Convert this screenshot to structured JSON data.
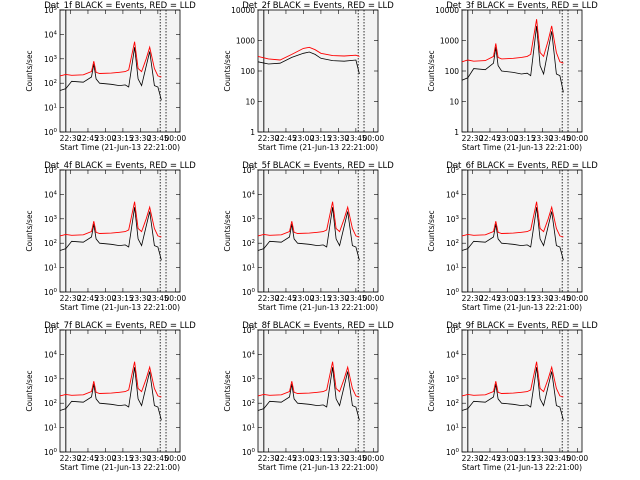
{
  "chart_data": {
    "type": "line",
    "x_ticks": [
      "22:30",
      "22:45",
      "23:00",
      "23:15",
      "23:30",
      "23:45",
      "00:00"
    ],
    "xlabel": "Start Time (21-Jun-13 22:21:00)",
    "ylabel": "Counts/sec",
    "yscale": "log",
    "series_colors": {
      "events": "#000000",
      "lld": "#ff0000"
    },
    "panels": [
      {
        "title": "Det_1f BLACK = Events, RED = LLD",
        "ylim": [
          1,
          100000
        ],
        "y_ticks": [
          "10^0",
          "10^1",
          "10^2",
          "10^3",
          "10^4",
          "10^5"
        ],
        "shape": "flare"
      },
      {
        "title": "Det_2f BLACK = Events, RED = LLD",
        "ylim": [
          1,
          10000
        ],
        "y_ticks": [
          "1",
          "10",
          "100",
          "1000",
          "10000"
        ],
        "shape": "smooth"
      },
      {
        "title": "Det_3f BLACK = Events, RED = LLD",
        "ylim": [
          1,
          10000
        ],
        "y_ticks": [
          "1",
          "10",
          "100",
          "1000",
          "10000"
        ],
        "shape": "flare"
      },
      {
        "title": "Det_4f BLACK = Events, RED = LLD",
        "ylim": [
          1,
          100000
        ],
        "y_ticks": [
          "10^0",
          "10^1",
          "10^2",
          "10^3",
          "10^4",
          "10^5"
        ],
        "shape": "flare"
      },
      {
        "title": "Det_5f BLACK = Events, RED = LLD",
        "ylim": [
          1,
          100000
        ],
        "y_ticks": [
          "10^0",
          "10^1",
          "10^2",
          "10^3",
          "10^4",
          "10^5"
        ],
        "shape": "flare"
      },
      {
        "title": "Det_6f BLACK = Events, RED = LLD",
        "ylim": [
          1,
          100000
        ],
        "y_ticks": [
          "10^0",
          "10^1",
          "10^2",
          "10^3",
          "10^4",
          "10^5"
        ],
        "shape": "flare"
      },
      {
        "title": "Det_7f BLACK = Events, RED = LLD",
        "ylim": [
          1,
          100000
        ],
        "y_ticks": [
          "10^0",
          "10^1",
          "10^2",
          "10^3",
          "10^4",
          "10^5"
        ],
        "shape": "flare"
      },
      {
        "title": "Det_8f BLACK = Events, RED = LLD",
        "ylim": [
          1,
          100000
        ],
        "y_ticks": [
          "10^0",
          "10^1",
          "10^2",
          "10^3",
          "10^4",
          "10^5"
        ],
        "shape": "flare"
      },
      {
        "title": "Det_9f BLACK = Events, RED = LLD",
        "ylim": [
          1,
          100000
        ],
        "y_ticks": [
          "10^0",
          "10^1",
          "10^2",
          "10^3",
          "10^4",
          "10^5"
        ],
        "shape": "flare"
      }
    ],
    "flare_profile": {
      "x": [
        "22:21",
        "22:26",
        "22:31",
        "22:41",
        "22:48",
        "22:50",
        "22:52",
        "22:55",
        "23:05",
        "23:12",
        "23:17",
        "23:20",
        "23:25",
        "23:28",
        "23:31",
        "23:35",
        "23:38",
        "23:42",
        "23:45",
        "23:48"
      ],
      "lld": [
        200,
        230,
        210,
        220,
        300,
        800,
        280,
        250,
        260,
        280,
        300,
        350,
        5000,
        400,
        300,
        1000,
        3000,
        400,
        200,
        180
      ],
      "events": [
        50,
        60,
        120,
        110,
        180,
        600,
        150,
        100,
        90,
        80,
        85,
        70,
        3000,
        150,
        80,
        500,
        2000,
        80,
        70,
        20
      ]
    },
    "smooth_profile": {
      "x": [
        "22:21",
        "22:30",
        "22:40",
        "22:50",
        "23:00",
        "23:05",
        "23:10",
        "23:15",
        "23:25",
        "23:35",
        "23:45",
        "23:48"
      ],
      "lld": [
        300,
        250,
        230,
        350,
        550,
        600,
        500,
        380,
        320,
        310,
        330,
        300
      ],
      "events": [
        200,
        170,
        180,
        280,
        380,
        420,
        350,
        260,
        220,
        210,
        230,
        80
      ]
    }
  }
}
